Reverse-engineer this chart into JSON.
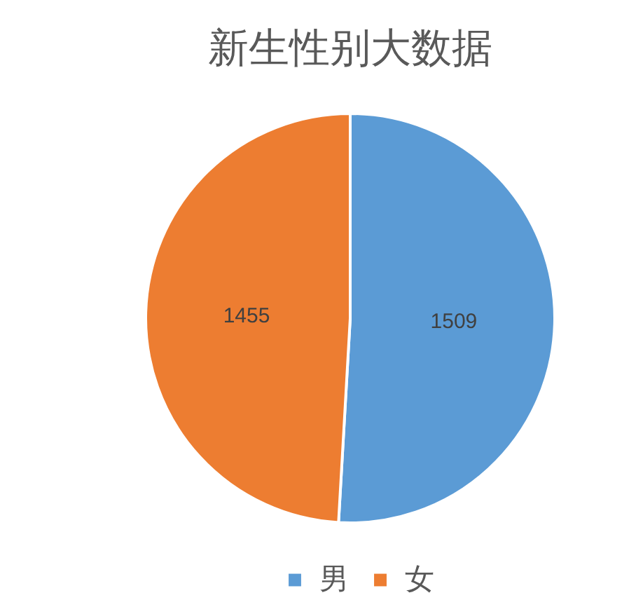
{
  "chart_data": {
    "type": "pie",
    "title": "新生性别大数据",
    "categories": [
      "男",
      "女"
    ],
    "values": [
      1509,
      1455
    ],
    "colors": [
      "#5b9bd5",
      "#ed7d31"
    ],
    "data_labels": true,
    "legend": "bottom"
  }
}
